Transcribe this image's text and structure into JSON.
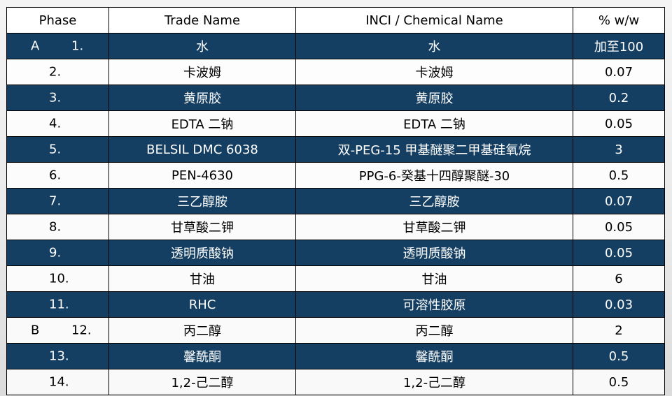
{
  "headers": [
    "Phase",
    "Trade Name",
    "INCI / Chemical Name",
    "% w/w"
  ],
  "colors": {
    "dark_row": "#143f62",
    "light_row": "#ffffff"
  },
  "rows": [
    {
      "phase": "A",
      "num": "1.",
      "trade": "水",
      "inci": "水",
      "pct": "加至100"
    },
    {
      "phase": "",
      "num": "2.",
      "trade": "卡波姆",
      "inci": "卡波姆",
      "pct": "0.07"
    },
    {
      "phase": "",
      "num": "3.",
      "trade": "黄原胶",
      "inci": "黄原胶",
      "pct": "0.2"
    },
    {
      "phase": "",
      "num": "4.",
      "trade": "EDTA 二钠",
      "inci": "EDTA 二钠",
      "pct": "0.05"
    },
    {
      "phase": "",
      "num": "5.",
      "trade": "BELSIL DMC 6038",
      "inci": "双-PEG-15 甲基醚聚二甲基硅氧烷",
      "pct": "3"
    },
    {
      "phase": "",
      "num": "6.",
      "trade": "PEN-4630",
      "inci": "PPG-6-癸基十四醇聚醚-30",
      "pct": "0.5"
    },
    {
      "phase": "",
      "num": "7.",
      "trade": "三乙醇胺",
      "inci": "三乙醇胺",
      "pct": "0.07"
    },
    {
      "phase": "",
      "num": "8.",
      "trade": "甘草酸二钾",
      "inci": "甘草酸二钾",
      "pct": "0.05"
    },
    {
      "phase": "",
      "num": "9.",
      "trade": "透明质酸钠",
      "inci": "透明质酸钠",
      "pct": "0.05"
    },
    {
      "phase": "",
      "num": "10.",
      "trade": "甘油",
      "inci": "甘油",
      "pct": "6"
    },
    {
      "phase": "",
      "num": "11.",
      "trade": "RHC",
      "inci": "可溶性胶原",
      "pct": "0.03"
    },
    {
      "phase": "B",
      "num": "12.",
      "trade": "丙二醇",
      "inci": "丙二醇",
      "pct": "2"
    },
    {
      "phase": "",
      "num": "13.",
      "trade": "馨酰酮",
      "inci": "馨酰酮",
      "pct": "0.5"
    },
    {
      "phase": "",
      "num": "14.",
      "trade": "1,2-己二醇",
      "inci": "1,2-己二醇",
      "pct": "0.5"
    }
  ]
}
